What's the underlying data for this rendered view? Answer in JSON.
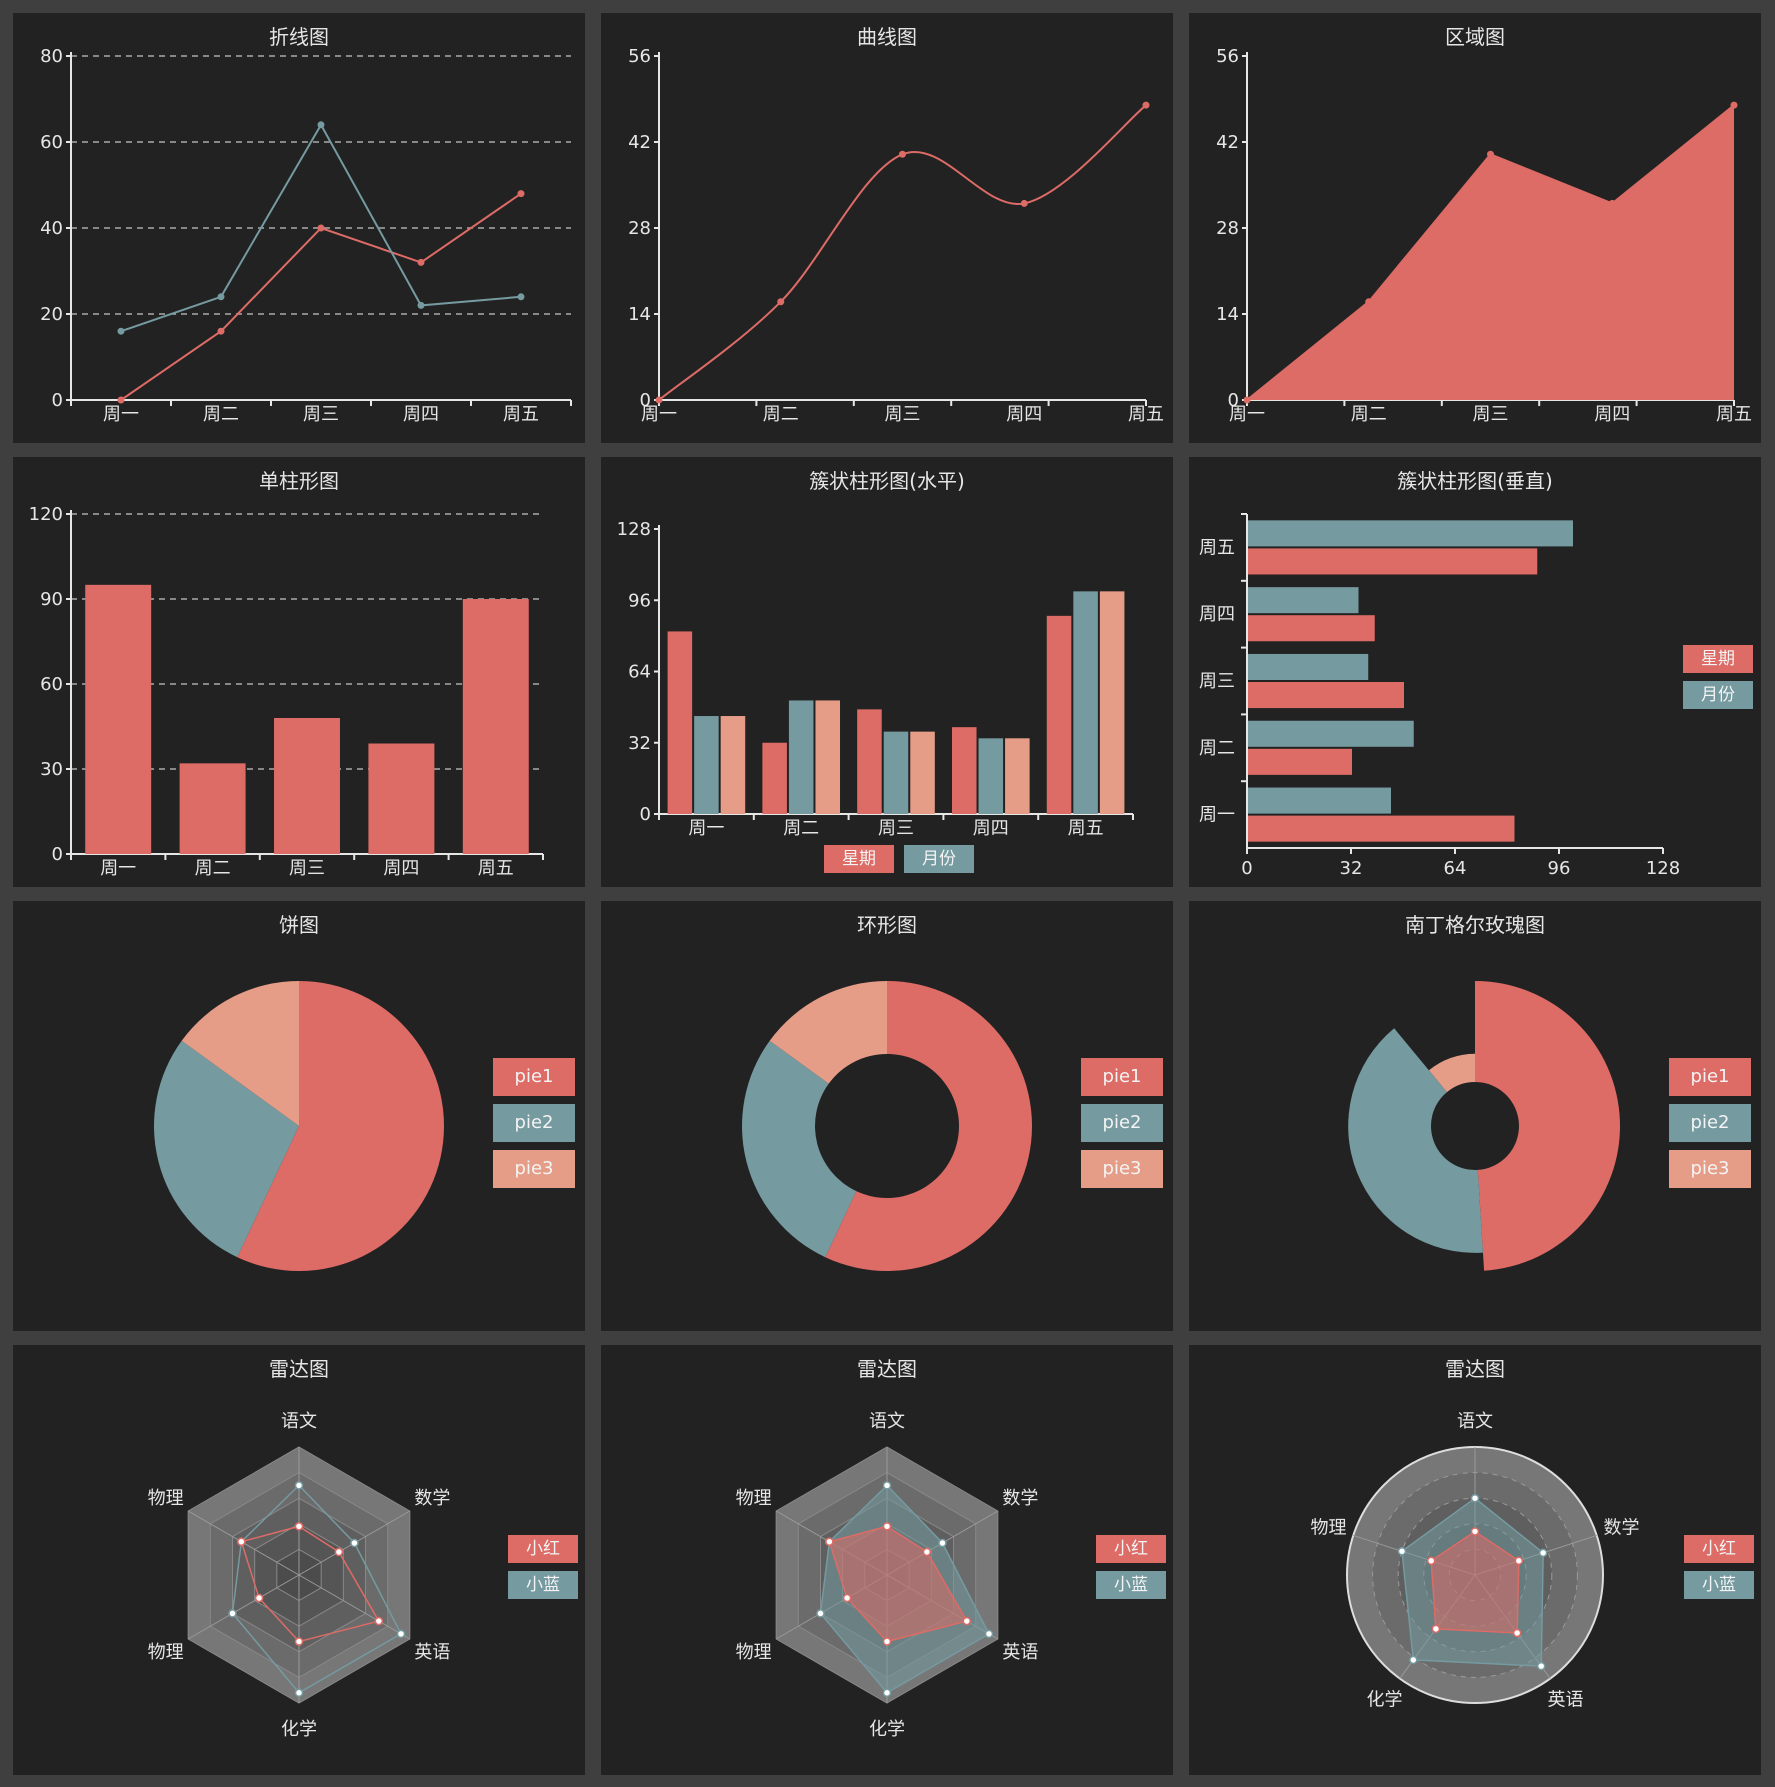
{
  "colors": {
    "red": "#dd6b66",
    "teal": "#759aa0",
    "salmon": "#e69d87",
    "axis": "#e6e6e6",
    "bg": "#222222"
  },
  "chart_data": [
    {
      "id": "line",
      "type": "line",
      "title": "折线图",
      "categories": [
        "周一",
        "周二",
        "周三",
        "周四",
        "周五"
      ],
      "series": [
        {
          "values": [
            0,
            16,
            40,
            32,
            48
          ],
          "color": "red"
        },
        {
          "values": [
            16,
            24,
            64,
            22,
            24
          ],
          "color": "teal"
        }
      ],
      "ylim": [
        0,
        80
      ],
      "yticks": [
        0,
        20,
        40,
        60,
        80
      ],
      "grid": true
    },
    {
      "id": "curve",
      "type": "line",
      "smooth": true,
      "title": "曲线图",
      "categories": [
        "周一",
        "周二",
        "周三",
        "周四",
        "周五"
      ],
      "series": [
        {
          "values": [
            0,
            16,
            40,
            32,
            48
          ],
          "color": "red"
        }
      ],
      "ylim": [
        0,
        56
      ],
      "yticks": [
        0,
        14,
        28,
        42,
        56
      ],
      "grid": false
    },
    {
      "id": "area",
      "type": "area",
      "title": "区域图",
      "categories": [
        "周一",
        "周二",
        "周三",
        "周四",
        "周五"
      ],
      "series": [
        {
          "values": [
            0,
            16,
            40,
            32,
            48
          ],
          "color": "red"
        }
      ],
      "ylim": [
        0,
        56
      ],
      "yticks": [
        0,
        14,
        28,
        42,
        56
      ],
      "grid": false
    },
    {
      "id": "bar",
      "type": "bar",
      "title": "单柱形图",
      "categories": [
        "周一",
        "周二",
        "周三",
        "周四",
        "周五"
      ],
      "series": [
        {
          "values": [
            95,
            32,
            48,
            39,
            90
          ],
          "color": "red"
        }
      ],
      "ylim": [
        0,
        120
      ],
      "yticks": [
        0,
        30,
        60,
        90,
        120
      ],
      "grid": true
    },
    {
      "id": "cluster-h",
      "type": "bar",
      "title": "簇状柱形图(水平)",
      "categories": [
        "周一",
        "周二",
        "周三",
        "周四",
        "周五"
      ],
      "series": [
        {
          "values": [
            82,
            32,
            47,
            39,
            89
          ],
          "color": "red"
        },
        {
          "values": [
            44,
            51,
            37,
            34,
            100
          ],
          "color": "teal"
        },
        {
          "values": [
            44,
            51,
            37,
            34,
            100
          ],
          "color": "salmon"
        }
      ],
      "ylim": [
        0,
        128
      ],
      "yticks": [
        0,
        32,
        64,
        96,
        128
      ],
      "legend": [
        "星期",
        "月份"
      ],
      "legend_position": "bottom"
    },
    {
      "id": "cluster-v",
      "type": "bar",
      "orientation": "horizontal",
      "title": "簇状柱形图(垂直)",
      "categories": [
        "周一",
        "周二",
        "周三",
        "周四",
        "周五"
      ],
      "series": [
        {
          "name": "星期",
          "values": [
            82,
            32,
            48,
            39,
            89
          ],
          "color": "red"
        },
        {
          "name": "月份",
          "values": [
            44,
            51,
            37,
            34,
            100
          ],
          "color": "teal"
        }
      ],
      "xlim": [
        0,
        128
      ],
      "xticks": [
        0,
        32,
        64,
        96,
        128
      ],
      "legend": [
        "星期",
        "月份"
      ],
      "legend_position": "right"
    },
    {
      "id": "pie",
      "type": "pie",
      "title": "饼图",
      "slices": [
        {
          "name": "pie1",
          "value": 57,
          "color": "red"
        },
        {
          "name": "pie2",
          "value": 28,
          "color": "teal"
        },
        {
          "name": "pie3",
          "value": 15,
          "color": "salmon"
        }
      ],
      "legend_position": "right"
    },
    {
      "id": "donut",
      "type": "pie",
      "donut": true,
      "title": "环形图",
      "slices": [
        {
          "name": "pie1",
          "value": 57,
          "color": "red"
        },
        {
          "name": "pie2",
          "value": 28,
          "color": "teal"
        },
        {
          "name": "pie3",
          "value": 15,
          "color": "salmon"
        }
      ],
      "legend_position": "right"
    },
    {
      "id": "rose",
      "type": "pie",
      "rose": true,
      "title": "南丁格尔玫瑰图",
      "slices": [
        {
          "name": "pie1",
          "value": 100,
          "color": "red"
        },
        {
          "name": "pie2",
          "value": 82,
          "color": "teal"
        },
        {
          "name": "pie3",
          "value": 28,
          "color": "salmon"
        }
      ],
      "legend_position": "right"
    },
    {
      "id": "radar1",
      "type": "radar",
      "title": "雷达图",
      "shape": "polygon",
      "filled": false,
      "indicators": [
        "语文",
        "数学",
        "英语",
        "化学",
        "物理",
        "物理"
      ],
      "max": 100,
      "series": [
        {
          "name": "小红",
          "values": [
            38,
            36,
            72,
            52,
            36,
            52
          ],
          "color": "red"
        },
        {
          "name": "小蓝",
          "values": [
            70,
            50,
            92,
            92,
            60,
            52
          ],
          "color": "teal"
        }
      ],
      "legend": [
        "小红",
        "小蓝"
      ],
      "legend_position": "right"
    },
    {
      "id": "radar2",
      "type": "radar",
      "title": "雷达图",
      "shape": "polygon",
      "filled": true,
      "indicators": [
        "语文",
        "数学",
        "英语",
        "化学",
        "物理",
        "物理"
      ],
      "max": 100,
      "series": [
        {
          "name": "小红",
          "values": [
            38,
            36,
            72,
            52,
            36,
            52
          ],
          "color": "red"
        },
        {
          "name": "小蓝",
          "values": [
            70,
            50,
            92,
            92,
            60,
            52
          ],
          "color": "teal"
        }
      ],
      "legend": [
        "小红",
        "小蓝"
      ],
      "legend_position": "right"
    },
    {
      "id": "radar3",
      "type": "radar",
      "title": "雷达图",
      "shape": "circle",
      "filled": true,
      "indicators": [
        "语文",
        "数学",
        "英语",
        "化学",
        "物理"
      ],
      "max": 100,
      "series": [
        {
          "name": "小红",
          "values": [
            34,
            36,
            56,
            52,
            36
          ],
          "color": "red"
        },
        {
          "name": "小蓝",
          "values": [
            60,
            56,
            88,
            82,
            60
          ],
          "color": "teal"
        }
      ],
      "legend": [
        "小红",
        "小蓝"
      ],
      "legend_position": "right"
    }
  ]
}
